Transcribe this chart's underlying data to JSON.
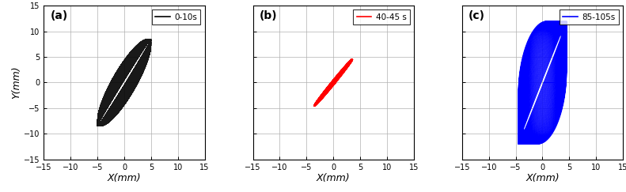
{
  "panels": [
    {
      "label": "(a)",
      "legend_label": "0-10s",
      "color": "black",
      "xlim": [
        -15,
        15
      ],
      "ylim": [
        -15,
        15
      ],
      "xticks": [
        -15,
        -10,
        -5,
        0,
        5,
        10,
        15
      ],
      "yticks": [
        -15,
        -10,
        -5,
        0,
        5,
        10,
        15
      ],
      "amp_x": 5.0,
      "amp_y": 8.5,
      "phase_start": 0.05,
      "phase_end": 0.55,
      "n_loops": 500,
      "pts_per_loop": 80,
      "linewidth": 0.25,
      "alpha": 0.9
    },
    {
      "label": "(b)",
      "legend_label": "40-45 s",
      "color": "red",
      "xlim": [
        -15,
        15
      ],
      "ylim": [
        -15,
        15
      ],
      "xticks": [
        -15,
        -10,
        -5,
        0,
        5,
        10,
        15
      ],
      "yticks": [
        -15,
        -10,
        -5,
        0,
        5,
        10,
        15
      ],
      "amp_x": 3.5,
      "amp_y": 4.5,
      "phase_start": 0.07,
      "phase_end": 0.1,
      "n_loops": 5,
      "pts_per_loop": 200,
      "linewidth": 1.8,
      "alpha": 1.0
    },
    {
      "label": "(c)",
      "legend_label": "85-105s",
      "color": "blue",
      "xlim": [
        -15,
        15
      ],
      "ylim": [
        -15,
        15
      ],
      "xticks": [
        -15,
        -10,
        -5,
        0,
        5,
        10,
        15
      ],
      "yticks": [
        -15,
        -10,
        -5,
        0,
        5,
        10,
        15
      ],
      "amp_x": 4.5,
      "amp_y": 12.0,
      "phase_start": 0.05,
      "phase_end": 1.4,
      "n_loops": 40,
      "pts_per_loop": 200,
      "linewidth": 0.6,
      "alpha": 1.0
    }
  ],
  "xlabel": "X(mm)",
  "ylabel": "Y(mm)",
  "grid_color": "#b0b0b0",
  "grid_linewidth": 0.5,
  "tick_fontsize": 7,
  "label_fontsize": 9,
  "legend_fontsize": 7.5,
  "panel_label_fontsize": 10
}
